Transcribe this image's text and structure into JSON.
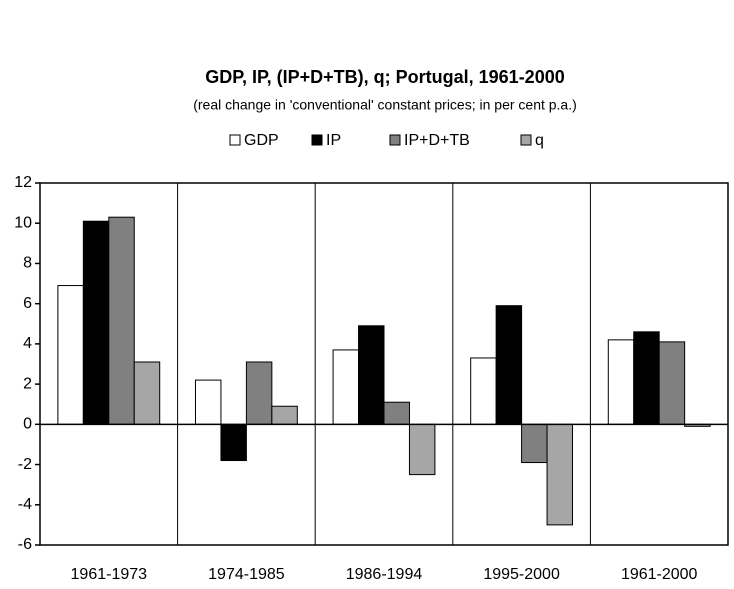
{
  "chart_data": {
    "type": "bar",
    "title": "GDP, IP, (IP+D+TB), q; Portugal, 1961-2000",
    "subtitle": "(real change in 'conventional' constant prices; in per cent p.a.)",
    "categories": [
      "1961-1973",
      "1974-1985",
      "1986-1994",
      "1995-2000",
      "1961-2000"
    ],
    "series": [
      {
        "name": "GDP",
        "color": "#ffffff",
        "values": [
          6.9,
          2.2,
          3.7,
          3.3,
          4.2
        ]
      },
      {
        "name": "IP",
        "color": "#000000",
        "values": [
          10.1,
          -1.8,
          4.9,
          5.9,
          4.6
        ]
      },
      {
        "name": "IP+D+TB",
        "color": "#808080",
        "values": [
          10.3,
          3.1,
          1.1,
          -1.9,
          4.1
        ]
      },
      {
        "name": "q",
        "color": "#a6a6a6",
        "values": [
          3.1,
          0.9,
          -2.5,
          -5.0,
          -0.1
        ]
      }
    ],
    "ylim": [
      -6,
      12
    ],
    "yticks": [
      -6,
      -4,
      -2,
      0,
      2,
      4,
      6,
      8,
      10,
      12
    ],
    "legend": "top"
  }
}
